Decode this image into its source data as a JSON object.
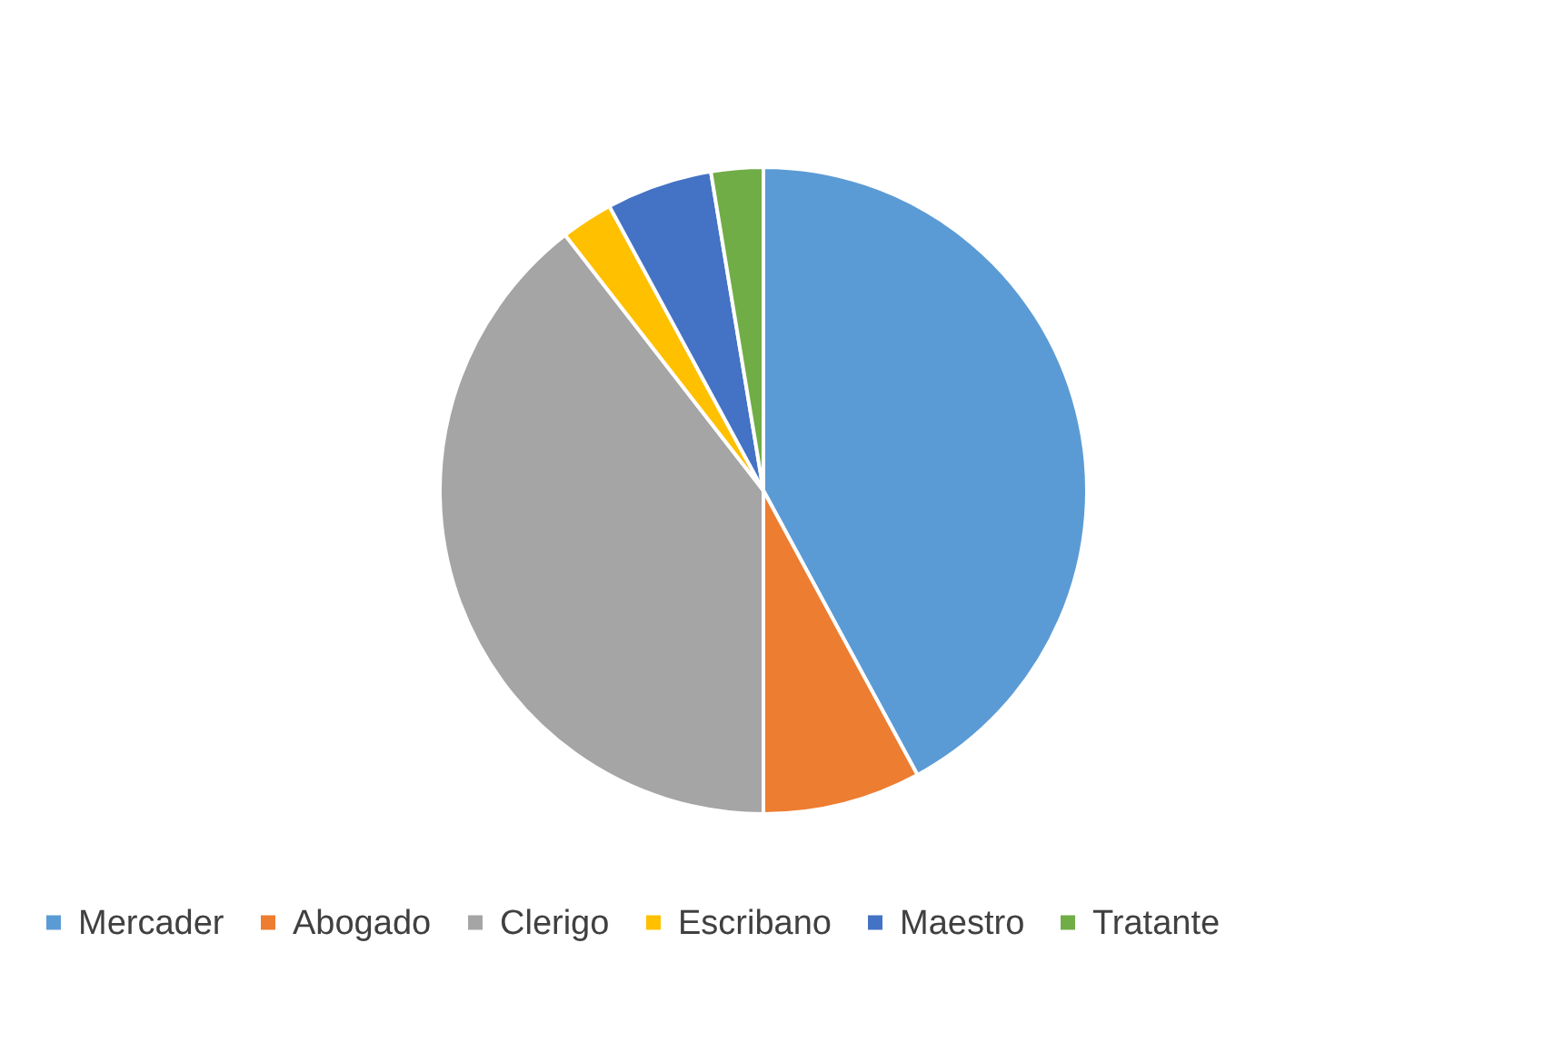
{
  "chart_data": {
    "type": "pie",
    "categories": [
      "Mercader",
      "Abogado",
      "Clerigo",
      "Escribano",
      "Maestro",
      "Tratante"
    ],
    "values": [
      42.1,
      7.9,
      39.5,
      2.6,
      5.3,
      2.6
    ],
    "colors": [
      "#5b9bd5",
      "#ed7d31",
      "#a5a5a5",
      "#ffc000",
      "#4472c4",
      "#70ad47"
    ],
    "legend": "bottom"
  }
}
